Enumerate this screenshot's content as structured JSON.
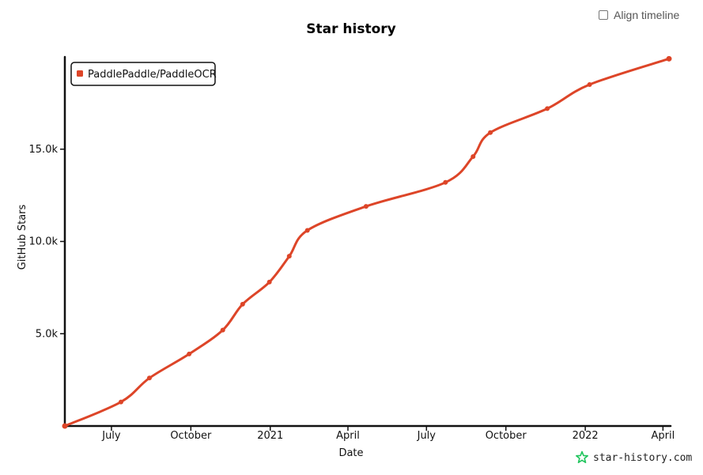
{
  "align_timeline": {
    "label": "Align timeline",
    "checked": false
  },
  "brand": {
    "text": "star-history.com",
    "icon": "star-outline-icon",
    "color": "#22c55e"
  },
  "chart_data": {
    "type": "line",
    "title": "Star history",
    "xlabel": "Date",
    "ylabel": "GitHub Stars",
    "x_type": "date",
    "x_ticks": [
      {
        "date": "2020-07-01",
        "label": "July"
      },
      {
        "date": "2020-10-01",
        "label": "October"
      },
      {
        "date": "2021-01-01",
        "label": "2021"
      },
      {
        "date": "2021-04-01",
        "label": "April"
      },
      {
        "date": "2021-07-01",
        "label": "July"
      },
      {
        "date": "2021-10-01",
        "label": "October"
      },
      {
        "date": "2022-01-01",
        "label": "2022"
      },
      {
        "date": "2022-04-01",
        "label": "April"
      }
    ],
    "y_ticks": [
      {
        "value": 5000,
        "label": "5.0k"
      },
      {
        "value": 10000,
        "label": "10.0k"
      },
      {
        "value": 15000,
        "label": "15.0k"
      }
    ],
    "xlim": [
      "2020-05-08",
      "2022-04-08"
    ],
    "ylim": [
      0,
      20000
    ],
    "legend_position": "top-left",
    "series": [
      {
        "name": "PaddlePaddle/PaddleOCR",
        "color": "#dd4528",
        "points": [
          {
            "x": "2020-05-08",
            "y": 0
          },
          {
            "x": "2020-07-12",
            "y": 1300
          },
          {
            "x": "2020-08-14",
            "y": 2600
          },
          {
            "x": "2020-09-29",
            "y": 3900
          },
          {
            "x": "2020-11-07",
            "y": 5200
          },
          {
            "x": "2020-11-30",
            "y": 6600
          },
          {
            "x": "2020-12-31",
            "y": 7800
          },
          {
            "x": "2021-01-23",
            "y": 9200
          },
          {
            "x": "2021-02-13",
            "y": 10600
          },
          {
            "x": "2021-04-22",
            "y": 11900
          },
          {
            "x": "2021-07-23",
            "y": 13200
          },
          {
            "x": "2021-08-24",
            "y": 14600
          },
          {
            "x": "2021-09-13",
            "y": 15900
          },
          {
            "x": "2021-11-18",
            "y": 17200
          },
          {
            "x": "2022-01-06",
            "y": 18500
          },
          {
            "x": "2022-04-08",
            "y": 19900
          }
        ]
      }
    ]
  }
}
